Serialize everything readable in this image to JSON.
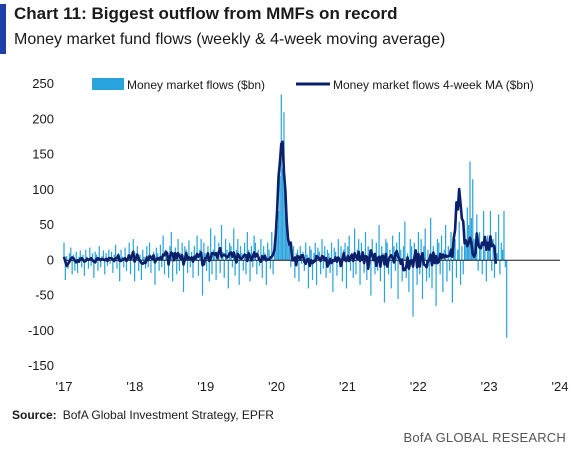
{
  "header": {
    "title": "Chart 11: Biggest outflow from MMFs on record",
    "subtitle": "Money market fund flows (weekly & 4-week moving average)"
  },
  "footer": {
    "source_label": "Source:",
    "source_text": "BofA Global Investment Strategy, EPFR",
    "credit": "BofA GLOBAL RESEARCH"
  },
  "colors": {
    "bars": "#29a3dc",
    "ma_line": "#0b1f6b",
    "accent": "#1c3fa8"
  },
  "chart_data": {
    "type": "bar",
    "title": "Chart 11: Biggest outflow from MMFs on record",
    "subtitle": "Money market fund flows (weekly & 4-week moving average)",
    "xlabel": "",
    "ylabel": "",
    "ylim": [
      -150,
      250
    ],
    "yticks": [
      -150,
      -100,
      -50,
      0,
      50,
      100,
      150,
      200,
      250
    ],
    "xlim": [
      2017.0,
      2024.0
    ],
    "xticks": [
      {
        "value": 2017.0,
        "label": "'17"
      },
      {
        "value": 2018.0,
        "label": "'18"
      },
      {
        "value": 2019.0,
        "label": "'19"
      },
      {
        "value": 2020.0,
        "label": "'20"
      },
      {
        "value": 2021.0,
        "label": "'21"
      },
      {
        "value": 2022.0,
        "label": "'22"
      },
      {
        "value": 2023.0,
        "label": "'23"
      },
      {
        "value": 2024.0,
        "label": "'24"
      }
    ],
    "legend_position": "top",
    "series": [
      {
        "name": "Money market flows ($bn)",
        "type": "bar",
        "x_start": 2017.0,
        "x_step_weeks": 1,
        "values": [
          25,
          -28,
          6,
          -12,
          10,
          18,
          -20,
          8,
          -15,
          12,
          -18,
          5,
          14,
          -10,
          8,
          -22,
          15,
          5,
          -12,
          18,
          -8,
          10,
          -25,
          12,
          8,
          -15,
          20,
          -10,
          6,
          14,
          -20,
          10,
          -8,
          15,
          -5,
          12,
          -18,
          8,
          22,
          -12,
          10,
          -30,
          15,
          5,
          -10,
          18,
          -15,
          8,
          25,
          -20,
          12,
          30,
          -30,
          10,
          20,
          -15,
          8,
          -28,
          15,
          5,
          -12,
          20,
          -10,
          25,
          -18,
          8,
          12,
          -35,
          18,
          10,
          -15,
          22,
          -10,
          35,
          -20,
          15,
          8,
          -25,
          20,
          40,
          -30,
          12,
          18,
          -20,
          30,
          -15,
          10,
          25,
          -45,
          20,
          15,
          -18,
          28,
          -10,
          12,
          -25,
          20,
          8,
          35,
          -22,
          15,
          30,
          -50,
          25,
          10,
          -15,
          20,
          -30,
          45,
          -20,
          15,
          35,
          -28,
          10,
          25,
          -18,
          50,
          12,
          -25,
          30,
          15,
          -40,
          25,
          20,
          -10,
          45,
          -22,
          15,
          30,
          -35,
          20,
          10,
          -15,
          25,
          -20,
          40,
          15,
          -30,
          20,
          -10,
          35,
          25,
          -20,
          15,
          -8,
          30,
          -25,
          20,
          10,
          -35,
          25,
          15,
          -12,
          40,
          -20,
          10,
          30,
          50,
          70,
          120,
          235,
          130,
          210,
          95,
          60,
          40,
          25,
          -10,
          15,
          20,
          -25,
          10,
          15,
          -30,
          20,
          -5,
          12,
          -15,
          25,
          8,
          -40,
          20,
          15,
          -28,
          10,
          25,
          -35,
          18,
          12,
          -20,
          30,
          -12,
          20,
          -25,
          15,
          10,
          -18,
          25,
          -45,
          18,
          12,
          -22,
          30,
          -10,
          20,
          -30,
          15,
          25,
          -40,
          20,
          35,
          -15,
          10,
          -25,
          45,
          -20,
          15,
          30,
          -35,
          25,
          12,
          -18,
          40,
          -28,
          20,
          15,
          -50,
          30,
          10,
          -20,
          25,
          -15,
          50,
          -30,
          20,
          10,
          -60,
          30,
          25,
          -20,
          15,
          -40,
          35,
          20,
          -15,
          25,
          -55,
          40,
          15,
          -30,
          20,
          55,
          -25,
          10,
          -45,
          30,
          20,
          -80,
          25,
          15,
          -35,
          40,
          -20,
          30,
          -55,
          20,
          45,
          -30,
          15,
          -25,
          60,
          -40,
          20,
          10,
          -65,
          30,
          25,
          -20,
          35,
          -45,
          15,
          50,
          -30,
          20,
          -15,
          40,
          -60,
          25,
          30,
          -25,
          15,
          55,
          -35,
          20,
          -20,
          45,
          30,
          75,
          50,
          140,
          60,
          115,
          30,
          20,
          65,
          -15,
          40,
          25,
          -20,
          70,
          15,
          -30,
          35,
          20,
          70,
          -15,
          30,
          -25,
          40,
          10,
          65,
          -20,
          25,
          15,
          70,
          -10,
          -110
        ]
      },
      {
        "name": "Money market flows 4-week MA ($bn)",
        "type": "line",
        "x_start": 2017.0,
        "x_step_weeks": 1,
        "values": [
          5,
          -2,
          -8,
          -5,
          -2,
          2,
          4,
          3,
          -1,
          -3,
          0,
          -2,
          2,
          3,
          1,
          -2,
          -1,
          2,
          1,
          1,
          3,
          0,
          -2,
          -3,
          2,
          3,
          2,
          0,
          2,
          1,
          0,
          2,
          -1,
          3,
          3,
          3,
          1,
          -1,
          3,
          3,
          7,
          -1,
          -1,
          1,
          2,
          3,
          -1,
          2,
          7,
          2,
          6,
          12,
          -2,
          3,
          8,
          2,
          -1,
          -4,
          -5,
          -3,
          -4,
          4,
          0,
          6,
          4,
          2,
          7,
          -3,
          1,
          3,
          2,
          4,
          2,
          8,
          7,
          12,
          10,
          -6,
          5,
          11,
          9,
          0,
          10,
          3,
          10,
          6,
          2,
          7,
          -6,
          1,
          10,
          2,
          4,
          1,
          4,
          -2,
          5,
          3,
          9,
          5,
          8,
          11,
          -7,
          -6,
          3,
          3,
          10,
          -1,
          2,
          10,
          10,
          8,
          10,
          3,
          12,
          17,
          5,
          7,
          8,
          6,
          4,
          5,
          10,
          11,
          5,
          11,
          4,
          -3,
          9,
          6,
          2,
          3,
          5,
          8,
          7,
          -1,
          10,
          6,
          0,
          5,
          11,
          5,
          9,
          5,
          0,
          -2,
          6,
          2,
          6,
          0,
          1,
          1,
          4,
          5,
          8,
          15,
          38,
          73,
          119,
          139,
          165,
          168,
          124,
          99,
          55,
          30,
          22,
          25,
          0,
          0,
          4,
          -7,
          6,
          5,
          1,
          7,
          7,
          -2,
          -5,
          1,
          2,
          -8,
          0,
          -4,
          -2,
          -1,
          6,
          4,
          2,
          -1,
          6,
          5,
          0,
          3,
          -9,
          -4,
          2,
          -4,
          0,
          -1,
          4,
          -2,
          4,
          1,
          -8,
          0,
          10,
          0,
          -1,
          6,
          -1,
          4,
          8,
          -1,
          10,
          5,
          2,
          12,
          -1,
          2,
          11,
          -4,
          6,
          5,
          -12,
          3,
          14,
          7,
          0,
          9,
          -8,
          3,
          5,
          -9,
          6,
          6,
          -6,
          9,
          -9,
          0,
          5,
          7,
          3,
          -3,
          9,
          13,
          5,
          2,
          -5,
          1,
          -14,
          -14,
          -10,
          4,
          -12,
          -2,
          0,
          -9,
          4,
          14,
          -10,
          9,
          -9,
          5,
          10,
          -6,
          -7,
          -10,
          -1,
          0,
          8,
          -7,
          11,
          -4,
          6,
          -4,
          -2,
          9,
          3,
          8,
          4,
          7,
          5,
          6,
          6,
          15,
          5,
          31,
          43,
          82,
          72,
          101,
          80,
          59,
          55,
          24,
          28,
          20,
          25,
          32,
          25,
          9,
          5,
          10,
          38,
          23,
          18,
          17,
          25,
          22,
          33,
          15,
          25,
          15,
          34,
          20,
          22,
          19,
          -5
        ]
      }
    ]
  }
}
